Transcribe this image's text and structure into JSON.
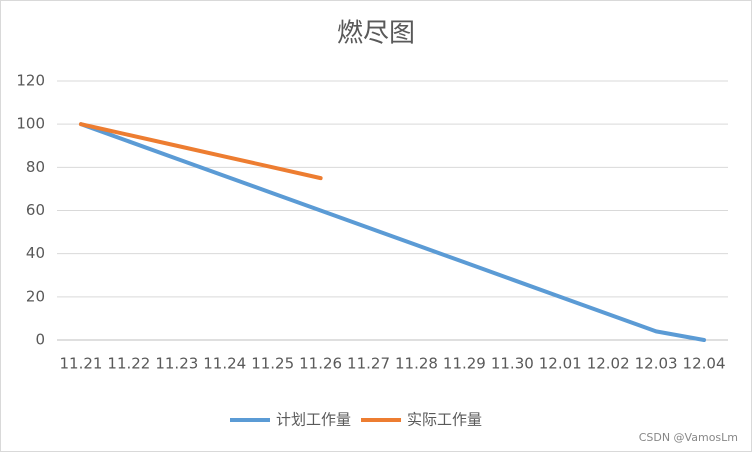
{
  "chart_data": {
    "type": "line",
    "title": "燃尽图",
    "categories": [
      "11.21",
      "11.22",
      "11.23",
      "11.24",
      "11.25",
      "11.26",
      "11.27",
      "11.28",
      "11.29",
      "11.30",
      "12.01",
      "12.02",
      "12.03",
      "12.04"
    ],
    "series": [
      {
        "name": "计划工作量",
        "color": "#5b9bd5",
        "values": [
          100,
          92,
          84,
          76,
          68,
          60,
          52,
          44,
          36,
          28,
          20,
          12,
          4,
          0
        ]
      },
      {
        "name": "实际工作量",
        "color": "#ed7d31",
        "values": [
          100,
          95,
          90,
          85,
          80,
          75,
          null,
          null,
          null,
          null,
          null,
          null,
          null,
          null
        ]
      }
    ],
    "ylim": [
      0,
      120
    ],
    "yticks": [
      0,
      20,
      40,
      60,
      80,
      100,
      120
    ],
    "grid": true,
    "legend": "bottom",
    "watermark": "CSDN @VamosLm"
  }
}
